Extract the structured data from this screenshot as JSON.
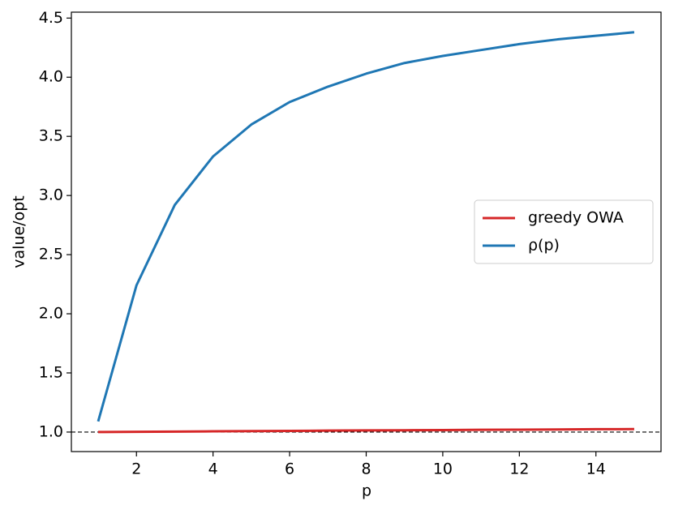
{
  "chart_data": {
    "type": "line",
    "xlabel": "p",
    "ylabel": "value/opt",
    "x": [
      1,
      2,
      3,
      4,
      5,
      6,
      7,
      8,
      9,
      10,
      11,
      12,
      13,
      14,
      15
    ],
    "series": [
      {
        "name": "greedy OWA",
        "color": "#d62728",
        "values": [
          1.0,
          1.002,
          1.004,
          1.006,
          1.008,
          1.01,
          1.012,
          1.014,
          1.015,
          1.017,
          1.019,
          1.02,
          1.022,
          1.024,
          1.025
        ]
      },
      {
        "name": "ρ(p)",
        "color": "#1f77b4",
        "values": [
          1.09,
          2.24,
          2.92,
          3.33,
          3.6,
          3.79,
          3.92,
          4.03,
          4.12,
          4.18,
          4.23,
          4.28,
          4.32,
          4.35,
          4.38
        ]
      }
    ],
    "hline": 1.0,
    "xlim": [
      0.3,
      15.7
    ],
    "ylim": [
      0.835,
      4.55
    ],
    "xticks": [
      2,
      4,
      6,
      8,
      10,
      12,
      14
    ],
    "yticks": [
      {
        "value": 1,
        "label": "1.0"
      },
      1.5,
      {
        "value": 2,
        "label": "2.0"
      },
      2.5,
      {
        "value": 3,
        "label": "3.0"
      },
      3.5,
      {
        "value": 4,
        "label": "4.0"
      },
      4.5
    ],
    "legend": "center right"
  }
}
